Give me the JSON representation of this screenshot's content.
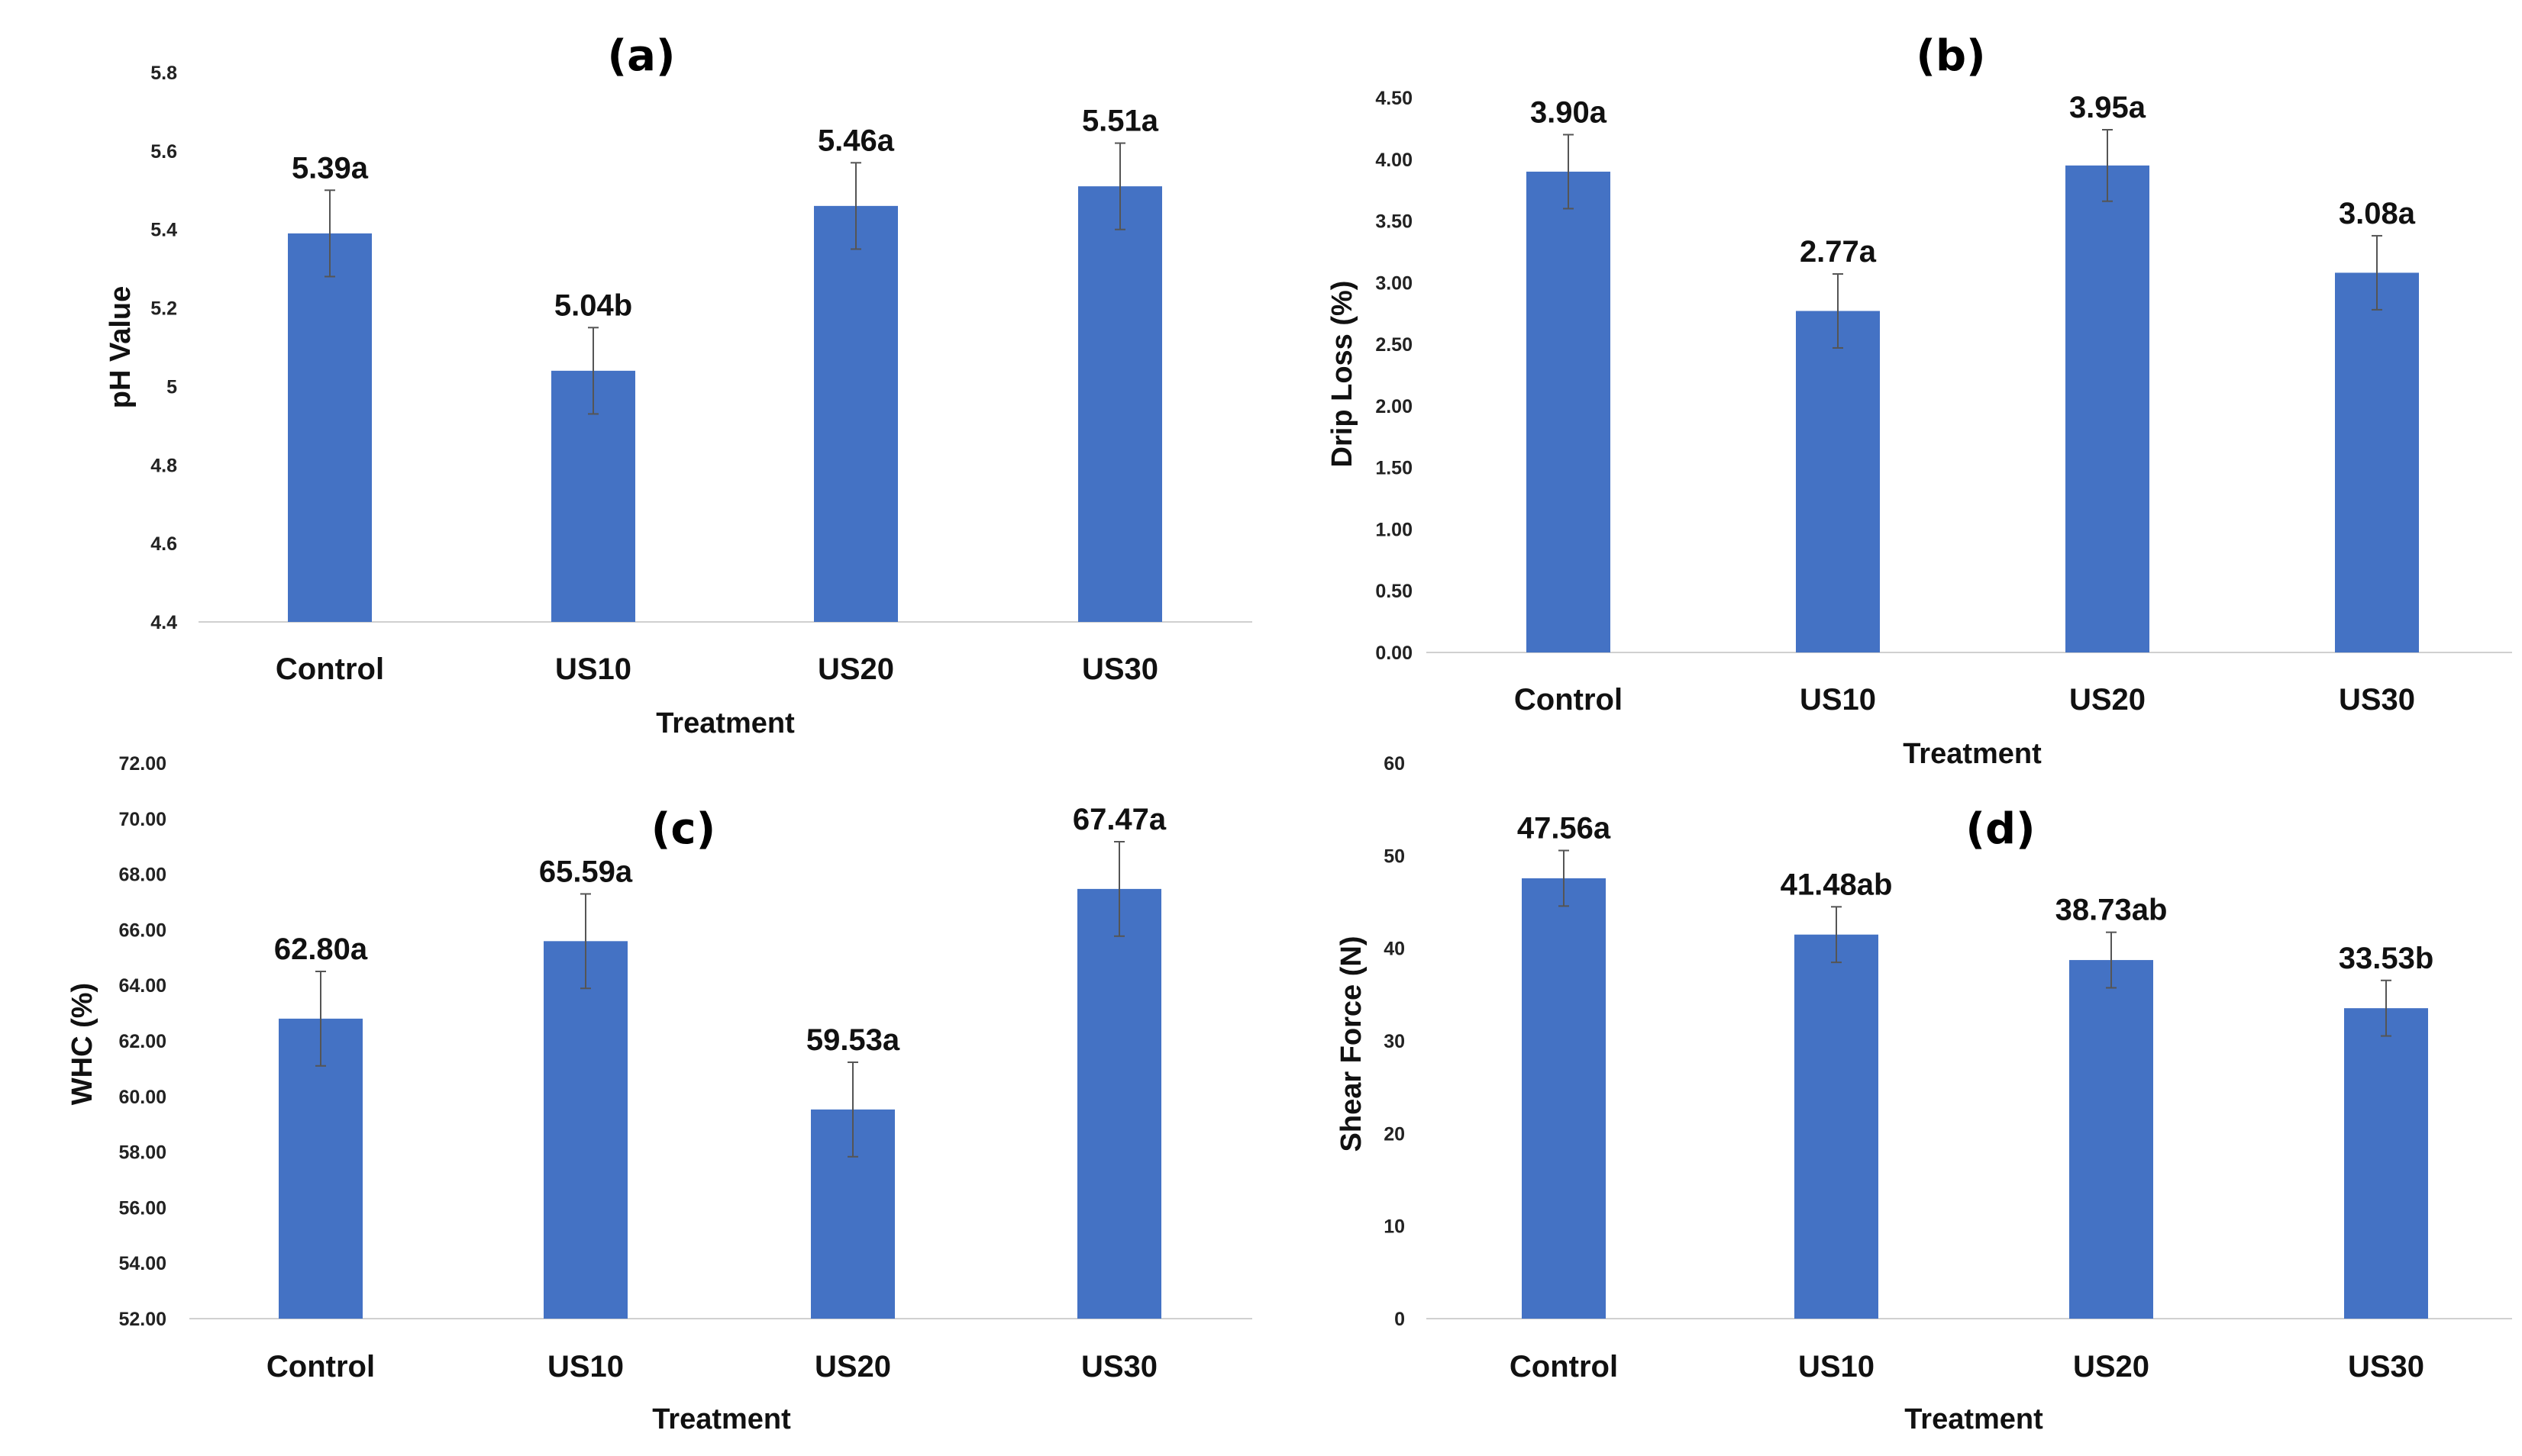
{
  "colors": {
    "bar": "#4472C4",
    "axis": "#d0d0d0",
    "error": "#555555",
    "text": "#111111"
  },
  "chart_data": [
    {
      "type": "bar",
      "panel_label": "(a)",
      "xlabel": "Treatment",
      "ylabel": "pH Value",
      "categories": [
        "Control",
        "US10",
        "US20",
        "US30"
      ],
      "values": [
        5.39,
        5.04,
        5.46,
        5.51
      ],
      "errors": [
        0.11,
        0.11,
        0.11,
        0.11
      ],
      "labels": [
        "5.39a",
        "5.04b",
        "5.46a",
        "5.51a"
      ],
      "ylim": [
        4.4,
        5.8
      ],
      "yticks": [
        "4.4",
        "4.6",
        "4.8",
        "5",
        "5.2",
        "5.4",
        "5.6",
        "5.8"
      ],
      "grid": false
    },
    {
      "type": "bar",
      "panel_label": "(b)",
      "xlabel": "Treatment",
      "ylabel": "Drip Loss (%)",
      "categories": [
        "Control",
        "US10",
        "US20",
        "US30"
      ],
      "values": [
        3.9,
        2.77,
        3.95,
        3.08
      ],
      "errors": [
        0.3,
        0.3,
        0.29,
        0.3
      ],
      "labels": [
        "3.90a",
        "2.77a",
        "3.95a",
        "3.08a"
      ],
      "ylim": [
        0,
        4.5
      ],
      "yticks": [
        "0.00",
        "0.50",
        "1.00",
        "1.50",
        "2.00",
        "2.50",
        "3.00",
        "3.50",
        "4.00",
        "4.50"
      ],
      "grid": false
    },
    {
      "type": "bar",
      "panel_label": "(c)",
      "xlabel": "Treatment",
      "ylabel": "WHC (%)",
      "categories": [
        "Control",
        "US10",
        "US20",
        "US30"
      ],
      "values": [
        62.8,
        65.59,
        59.53,
        67.47
      ],
      "errors": [
        1.7,
        1.7,
        1.7,
        1.7
      ],
      "labels": [
        "62.80a",
        "65.59a",
        "59.53a",
        "67.47a"
      ],
      "ylim": [
        52,
        72
      ],
      "yticks": [
        "52.00",
        "54.00",
        "56.00",
        "58.00",
        "60.00",
        "62.00",
        "64.00",
        "66.00",
        "68.00",
        "70.00",
        "72.00"
      ],
      "grid": false
    },
    {
      "type": "bar",
      "panel_label": "(d)",
      "xlabel": "Treatment",
      "ylabel": "Shear Force (N)",
      "categories": [
        "Control",
        "US10",
        "US20",
        "US30"
      ],
      "values": [
        47.56,
        41.48,
        38.73,
        33.53
      ],
      "errors": [
        3.0,
        3.0,
        3.0,
        3.0
      ],
      "labels": [
        "47.56a",
        "41.48ab",
        "38.73ab",
        "33.53b"
      ],
      "ylim": [
        0,
        60
      ],
      "yticks": [
        "0",
        "10",
        "20",
        "30",
        "40",
        "50",
        "60"
      ],
      "grid": false
    }
  ]
}
